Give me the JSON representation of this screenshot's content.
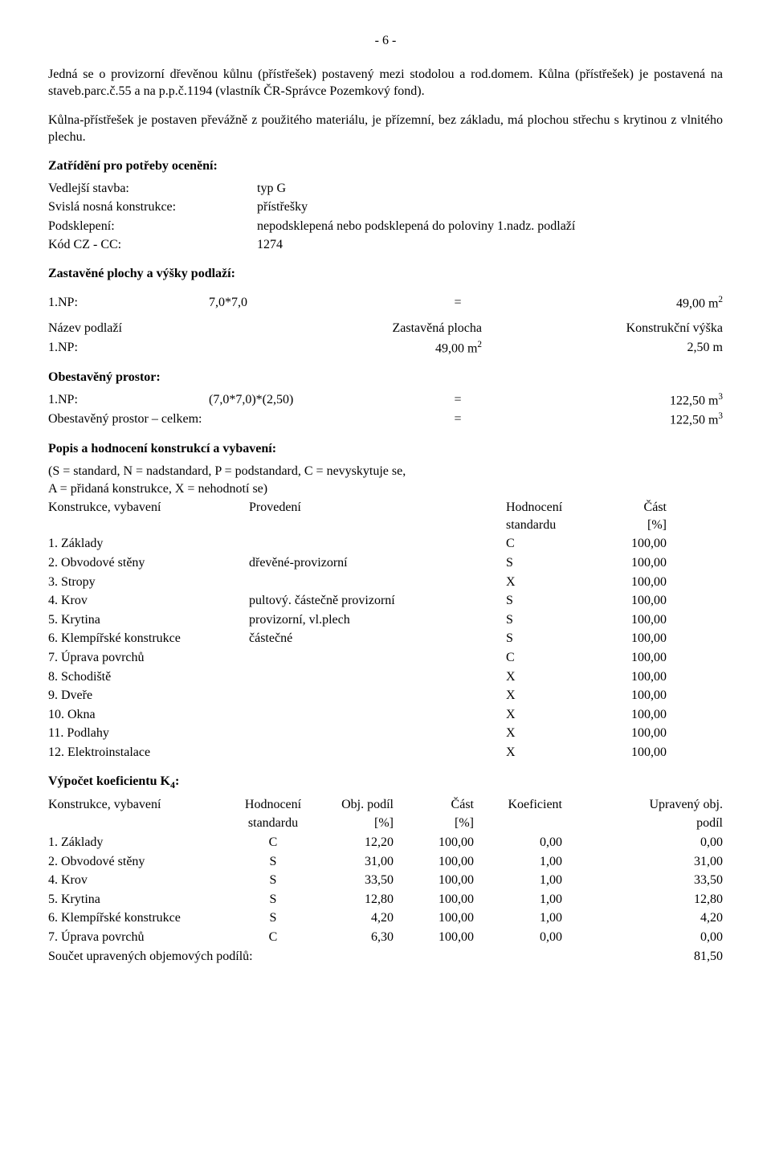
{
  "page_number": "- 6 -",
  "para1": "Jedná se o provizorní dřevěnou kůlnu (přístřešek) postavený mezi stodolou a rod.domem. Kůlna (přístřešek) je postavená na staveb.parc.č.55 a na p.p.č.1194 (vlastník ČR-Správce Pozemkový fond).",
  "para2": "Kůlna-přístřešek je postaven převážně z použitého materiálu, je přízemní, bez základu, má plochou střechu s krytinou z vlnitého plechu.",
  "zatrideni": {
    "title": "Zatřídění pro potřeby ocenění:",
    "rows": [
      {
        "label": "Vedlejší stavba:",
        "value": "typ G"
      },
      {
        "label": "Svislá nosná konstrukce:",
        "value": "přístřešky"
      },
      {
        "label": "Podsklepení:",
        "value": "nepodsklepená nebo podsklepená do poloviny 1.nadz. podlaží"
      },
      {
        "label": "Kód CZ - CC:",
        "value": "1274"
      }
    ]
  },
  "zastavene": {
    "title": "Zastavěné plochy a výšky podlaží:",
    "row": {
      "a": "1.NP:",
      "b": "7,0*7,0",
      "eq": "=",
      "v": "49,00 m",
      "sup": "2"
    },
    "header": {
      "c1": "Název podlaží",
      "c2": "Zastavěná plocha",
      "c3": "Konstrukční výška"
    },
    "data": {
      "c1": "1.NP:",
      "c2": "49,00 m",
      "c2sup": "2",
      "c3": "2,50 m"
    }
  },
  "obestaveny": {
    "title": "Obestavěný prostor:",
    "row1": {
      "a": "1.NP:",
      "b": "(7,0*7,0)*(2,50)",
      "eq": "=",
      "v": "122,50 m",
      "sup": "3"
    },
    "row2": {
      "a": "Obestavěný prostor – celkem:",
      "eq": "=",
      "v": "122,50 m",
      "sup": "3"
    }
  },
  "popis": {
    "title": "Popis a hodnocení konstrukcí a vybavení:",
    "legend1": "(S = standard, N = nadstandard, P = podstandard, C = nevyskytuje se,",
    "legend2": "A = přidaná konstrukce, X = nehodnotí se)",
    "header": {
      "c1": "Konstrukce, vybavení",
      "c2": "Provedení",
      "c3a": "Hodnocení",
      "c3b": "standardu",
      "c4a": "Část",
      "c4b": "[%]"
    },
    "rows": [
      {
        "c1": "1. Základy",
        "c2": "",
        "c3": "C",
        "c4": "100,00"
      },
      {
        "c1": "2. Obvodové stěny",
        "c2": "dřevěné-provizorní",
        "c3": "S",
        "c4": "100,00"
      },
      {
        "c1": "3. Stropy",
        "c2": "",
        "c3": "X",
        "c4": "100,00"
      },
      {
        "c1": "4. Krov",
        "c2": "pultový. částečně provizorní",
        "c3": "S",
        "c4": "100,00"
      },
      {
        "c1": "5. Krytina",
        "c2": "provizorní, vl.plech",
        "c3": "S",
        "c4": "100,00"
      },
      {
        "c1": "6. Klempířské konstrukce",
        "c2": "částečné",
        "c3": "S",
        "c4": "100,00"
      },
      {
        "c1": "7. Úprava povrchů",
        "c2": "",
        "c3": "C",
        "c4": "100,00"
      },
      {
        "c1": "8. Schodiště",
        "c2": "",
        "c3": "X",
        "c4": "100,00"
      },
      {
        "c1": "9. Dveře",
        "c2": "",
        "c3": "X",
        "c4": "100,00"
      },
      {
        "c1": "10. Okna",
        "c2": "",
        "c3": "X",
        "c4": "100,00"
      },
      {
        "c1": "11. Podlahy",
        "c2": "",
        "c3": "X",
        "c4": "100,00"
      },
      {
        "c1": "12. Elektroinstalace",
        "c2": "",
        "c3": "X",
        "c4": "100,00"
      }
    ]
  },
  "k4": {
    "title": "Výpočet koeficientu K",
    "title_sub": "4",
    "title_suffix": ":",
    "header1": {
      "c1": "Konstrukce, vybavení",
      "c2": "Hodnocení",
      "c3": "Obj. podíl",
      "c4": "Část",
      "c5": "Koeficient",
      "c6": "Upravený obj."
    },
    "header2": {
      "c1": "",
      "c2": "standardu",
      "c3": "[%]",
      "c4": "[%]",
      "c5": "",
      "c6": "podíl"
    },
    "rows": [
      {
        "c1": "1. Základy",
        "c2": "C",
        "c3": "12,20",
        "c4": "100,00",
        "c5": "0,00",
        "c6": "0,00"
      },
      {
        "c1": "2. Obvodové stěny",
        "c2": "S",
        "c3": "31,00",
        "c4": "100,00",
        "c5": "1,00",
        "c6": "31,00"
      },
      {
        "c1": "4. Krov",
        "c2": "S",
        "c3": "33,50",
        "c4": "100,00",
        "c5": "1,00",
        "c6": "33,50"
      },
      {
        "c1": "5. Krytina",
        "c2": "S",
        "c3": "12,80",
        "c4": "100,00",
        "c5": "1,00",
        "c6": "12,80"
      },
      {
        "c1": "6. Klempířské konstrukce",
        "c2": "S",
        "c3": "4,20",
        "c4": "100,00",
        "c5": "1,00",
        "c6": "4,20"
      },
      {
        "c1": "7. Úprava povrchů",
        "c2": "C",
        "c3": "6,30",
        "c4": "100,00",
        "c5": "0,00",
        "c6": "0,00"
      }
    ],
    "sum": {
      "label": "Součet upravených objemových podílů:",
      "value": "81,50"
    }
  }
}
